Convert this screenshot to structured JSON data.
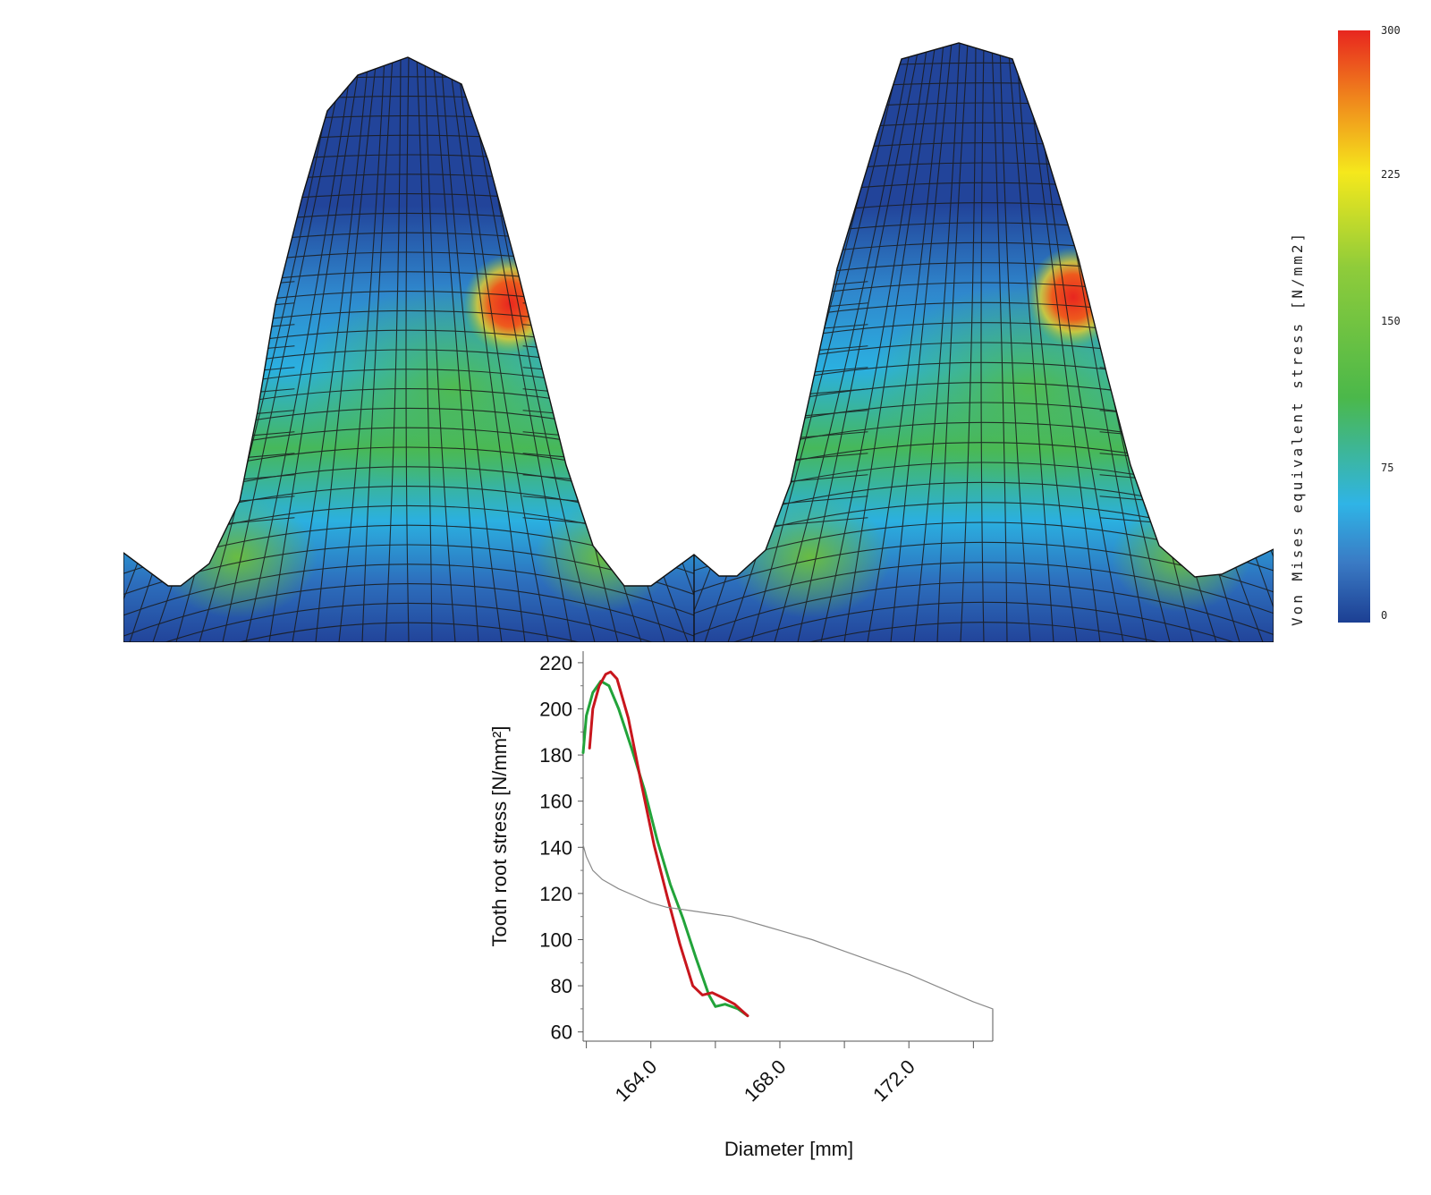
{
  "colorbar": {
    "label": "Von Mises equivalent stress [N/mm2]",
    "ticks": [
      "300",
      "225",
      "150",
      "75",
      "0"
    ],
    "colors": [
      "#e8261f",
      "#f08a1c",
      "#f5e81c",
      "#8fcc3a",
      "#4bb84a",
      "#2fb4e6",
      "#3a7ac4",
      "#1c3f93"
    ]
  },
  "fea_panels": {
    "mesh_color": "#1a1a1a",
    "low_color": "#22449a",
    "mid_color": "#2bb0e0",
    "high_color": "#4cb848",
    "peak_color": "#e8261f"
  },
  "chart_data": {
    "type": "line",
    "xlabel": "Diameter [mm]",
    "ylabel": "Tooth root stress [N/mm²]",
    "xlim": [
      161.9,
      174.6
    ],
    "ylim": [
      56,
      225
    ],
    "x_ticks": [
      "164.0",
      "168.0",
      "172.0"
    ],
    "x_tick_values": [
      164.0,
      168.0,
      172.0
    ],
    "y_ticks": [
      "60",
      "80",
      "100",
      "120",
      "140",
      "160",
      "180",
      "200",
      "220"
    ],
    "y_tick_values": [
      60,
      80,
      100,
      120,
      140,
      160,
      180,
      200,
      220
    ],
    "grid": false,
    "series": [
      {
        "color": "#22a33a",
        "x": [
          161.9,
          162.0,
          162.2,
          162.45,
          162.7,
          163.0,
          163.4,
          163.8,
          164.2,
          164.6,
          165.0,
          165.4,
          165.8,
          166.0,
          166.3,
          166.7,
          167.0
        ],
        "y": [
          181,
          197,
          207,
          212,
          210,
          200,
          183,
          165,
          143,
          124,
          109,
          92,
          76,
          71,
          72,
          70,
          67
        ]
      },
      {
        "color": "#c8161d",
        "x": [
          162.1,
          162.2,
          162.4,
          162.6,
          162.75,
          162.95,
          163.3,
          163.7,
          164.1,
          164.5,
          164.9,
          165.3,
          165.6,
          165.9,
          166.2,
          166.6,
          167.0
        ],
        "y": [
          183,
          200,
          210,
          215,
          216,
          213,
          196,
          168,
          141,
          119,
          98,
          80,
          76,
          77,
          75,
          72,
          67
        ]
      },
      {
        "color": "#8a8a8a",
        "x": [
          161.9,
          162.0,
          162.2,
          162.5,
          163.0,
          163.5,
          164.0,
          164.5,
          165.0,
          165.5,
          166.0,
          166.5,
          167.0,
          167.5,
          168.0,
          169.0,
          170.0,
          171.0,
          172.0,
          173.0,
          174.0,
          174.6
        ],
        "y": [
          141,
          136,
          130,
          126,
          122,
          119,
          116,
          114,
          113,
          112,
          111,
          110,
          108,
          106,
          104,
          100,
          95,
          90,
          85,
          79,
          73,
          70
        ]
      }
    ]
  }
}
